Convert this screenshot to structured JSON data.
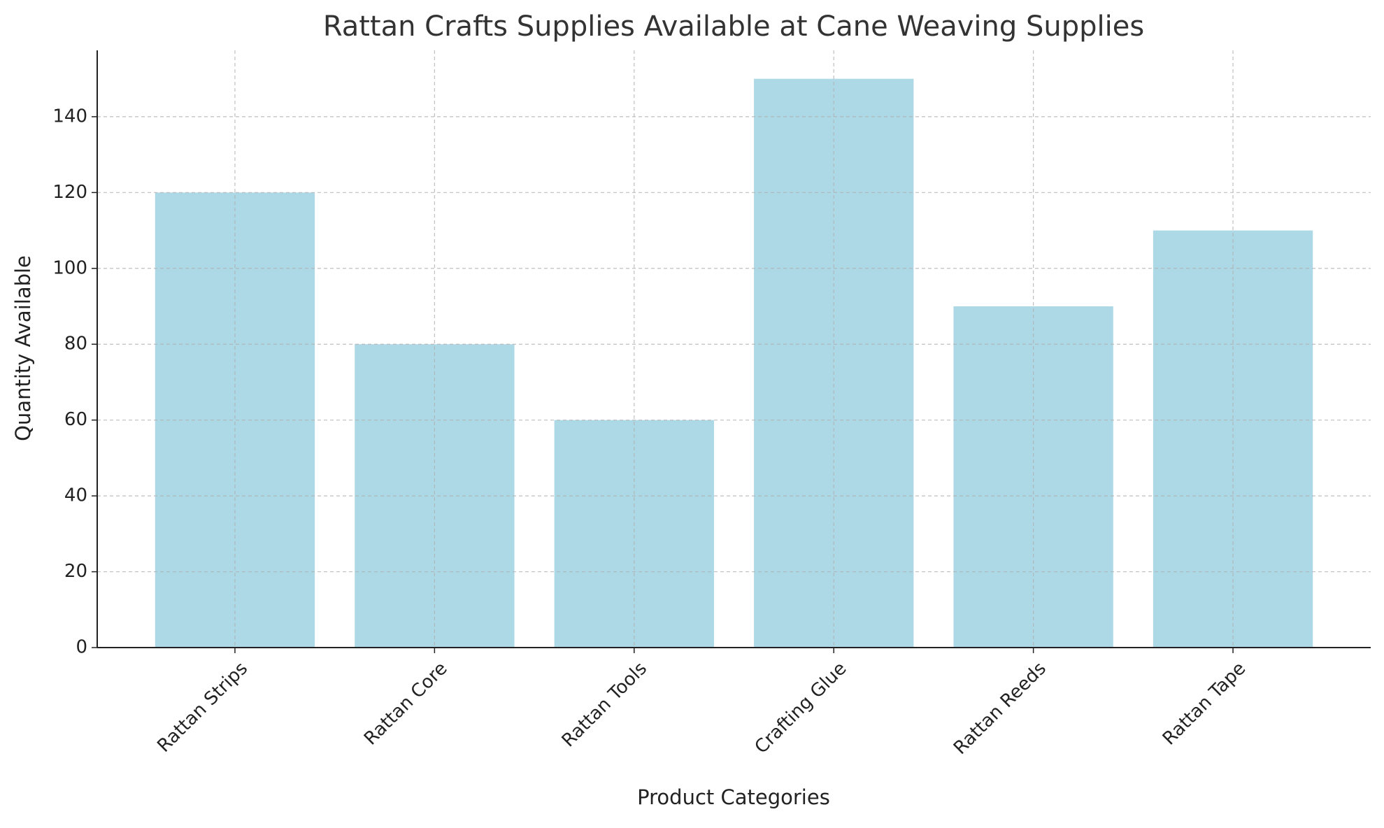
{
  "chart_data": {
    "type": "bar",
    "title": "Rattan Crafts Supplies Available at Cane Weaving Supplies",
    "x_label": "Product Categories",
    "y_label": "Quantity Available",
    "categories": [
      "Rattan Strips",
      "Rattan Core",
      "Rattan Tools",
      "Crafting Glue",
      "Rattan Reeds",
      "Rattan Tape"
    ],
    "values": [
      120,
      80,
      60,
      150,
      90,
      110
    ],
    "color": "#add8e6",
    "ylim": [
      0,
      157.5
    ],
    "yticks": [
      0,
      20,
      40,
      60,
      80,
      100,
      120,
      140
    ],
    "grid": true
  }
}
